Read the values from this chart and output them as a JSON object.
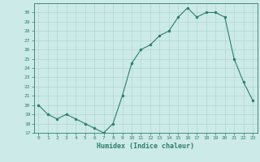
{
  "x": [
    0,
    1,
    2,
    3,
    4,
    5,
    6,
    7,
    8,
    9,
    10,
    11,
    12,
    13,
    14,
    15,
    16,
    17,
    18,
    19,
    20,
    21,
    22,
    23
  ],
  "y": [
    20,
    19,
    18.5,
    19,
    18.5,
    18,
    17.5,
    17,
    18,
    21,
    24.5,
    26,
    26.5,
    27.5,
    28,
    29.5,
    30.5,
    29.5,
    30,
    30,
    29.5,
    25,
    22.5,
    20.5
  ],
  "xlabel": "Humidex (Indice chaleur)",
  "xlim": [
    -0.5,
    23.5
  ],
  "ylim": [
    17,
    31
  ],
  "yticks": [
    17,
    18,
    19,
    20,
    21,
    22,
    23,
    24,
    25,
    26,
    27,
    28,
    29,
    30
  ],
  "xticks": [
    0,
    1,
    2,
    3,
    4,
    5,
    6,
    7,
    8,
    9,
    10,
    11,
    12,
    13,
    14,
    15,
    16,
    17,
    18,
    19,
    20,
    21,
    22,
    23
  ],
  "line_color": "#2e7d6e",
  "bg_color": "#cceae7",
  "grid_color": "#b0d8d4"
}
